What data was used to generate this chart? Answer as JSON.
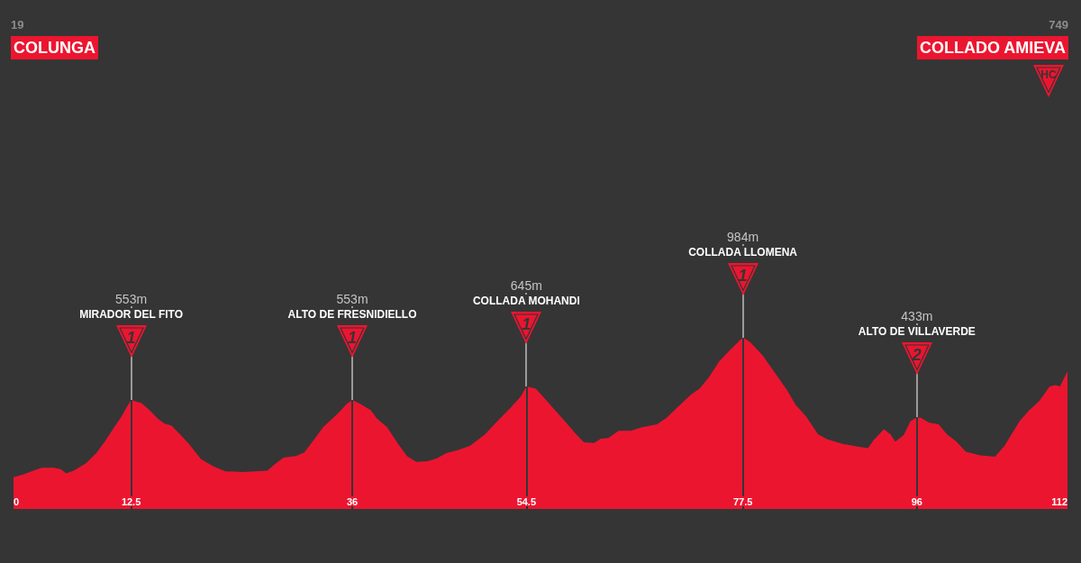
{
  "chart_data": {
    "type": "area",
    "color": "#ec1530",
    "x": [
      0,
      1.1,
      1.9,
      3.0,
      4.3,
      5.0,
      5.6,
      6.4,
      7.7,
      8.8,
      9.7,
      10.7,
      11.5,
      12.1,
      12.5,
      13.6,
      14.5,
      15.3,
      16.0,
      16.8,
      17.7,
      18.7,
      19.9,
      21.2,
      22.5,
      24.4,
      27.0,
      27.6,
      28.7,
      30.0,
      30.9,
      31.9,
      32.9,
      34.5,
      35.4,
      36,
      37.0,
      38.0,
      38.6,
      39.7,
      40.8,
      41.8,
      42.8,
      44.0,
      45.0,
      46.0,
      47.2,
      48.5,
      50.1,
      51.4,
      52.7,
      53.9,
      54.5,
      55.5,
      56.2,
      57.3,
      58.6,
      59.8,
      60.6,
      61.7,
      62.4,
      63.2,
      64.3,
      65.6,
      66.8,
      68.4,
      69.4,
      70.7,
      72.0,
      72.9,
      73.9,
      75.0,
      76.1,
      77.5,
      78.3,
      79.6,
      80.9,
      82.2,
      83.1,
      84.2,
      85.5,
      86.5,
      88.1,
      89.7,
      90.8,
      91.4,
      92.5,
      93.2,
      93.7,
      94.6,
      95.3,
      96,
      96.4,
      97.3,
      98.3,
      99.2,
      100.2,
      101.2,
      102.7,
      104.3,
      105.3,
      106.9,
      107.9,
      109.0,
      110.1,
      110.7,
      111.2,
      112
    ],
    "values": [
      19,
      40,
      60,
      85,
      85,
      75,
      45,
      65,
      115,
      185,
      265,
      365,
      440,
      510,
      553,
      530,
      480,
      425,
      390,
      375,
      315,
      245,
      145,
      95,
      60,
      55,
      65,
      100,
      155,
      165,
      190,
      275,
      365,
      460,
      525,
      553,
      520,
      480,
      425,
      365,
      255,
      165,
      125,
      130,
      150,
      185,
      205,
      235,
      315,
      405,
      490,
      575,
      645,
      630,
      580,
      500,
      405,
      315,
      260,
      255,
      285,
      290,
      340,
      340,
      365,
      385,
      430,
      510,
      590,
      630,
      710,
      820,
      895,
      984,
      950,
      860,
      740,
      620,
      520,
      440,
      315,
      280,
      250,
      230,
      220,
      275,
      350,
      315,
      265,
      310,
      405,
      433,
      430,
      395,
      385,
      315,
      265,
      195,
      170,
      160,
      235,
      405,
      480,
      545,
      645,
      655,
      645,
      749
    ],
    "value_labels": [
      null,
      null,
      null,
      null,
      null,
      null,
      null,
      null,
      null,
      null,
      null,
      null,
      null,
      null,
      "553m",
      null,
      null,
      null,
      null,
      null,
      null,
      null,
      null,
      null,
      null,
      null,
      null,
      null,
      null,
      null,
      null,
      null,
      null,
      null,
      null,
      "553m",
      null,
      null,
      null,
      null,
      null,
      null,
      null,
      null,
      null,
      null,
      null,
      null,
      null,
      null,
      null,
      null,
      "645m",
      null,
      null,
      null,
      null,
      null,
      null,
      null,
      null,
      null,
      null,
      null,
      null,
      null,
      null,
      null,
      null,
      null,
      null,
      null,
      null,
      "984m",
      null,
      null,
      null,
      null,
      null,
      null,
      null,
      null,
      null,
      null,
      null,
      null,
      null,
      null,
      null,
      null,
      null,
      "433m",
      null,
      null,
      null,
      null,
      null,
      null,
      null,
      null,
      null,
      null,
      null,
      null,
      null,
      null,
      null,
      null
    ],
    "xlim": [
      0,
      112
    ],
    "xticks": [
      0,
      12.5,
      36,
      54.5,
      77.5,
      96,
      112
    ],
    "grid": "x",
    "tick_labels": "x",
    "annotations": [
      "19",
      "COLUNGA",
      {
        "text": "MIRADOR DEL FITO\n1",
        "x": 12.5,
        "y": 553
      },
      {
        "text": "ALTO DE FRESNIDIELLO\n1",
        "x": 36,
        "y": 553
      },
      {
        "text": "COLLADA MOHANDI\n1",
        "x": 54.5,
        "y": 645
      },
      {
        "text": "COLLADA LLOMENA\n1",
        "x": 77.5,
        "y": 984
      },
      {
        "text": "ALTO DE VILLAVERDE\n2",
        "x": 96,
        "y": 433
      },
      "749",
      "COLLADO AMIEVA",
      "HC"
    ]
  }
}
